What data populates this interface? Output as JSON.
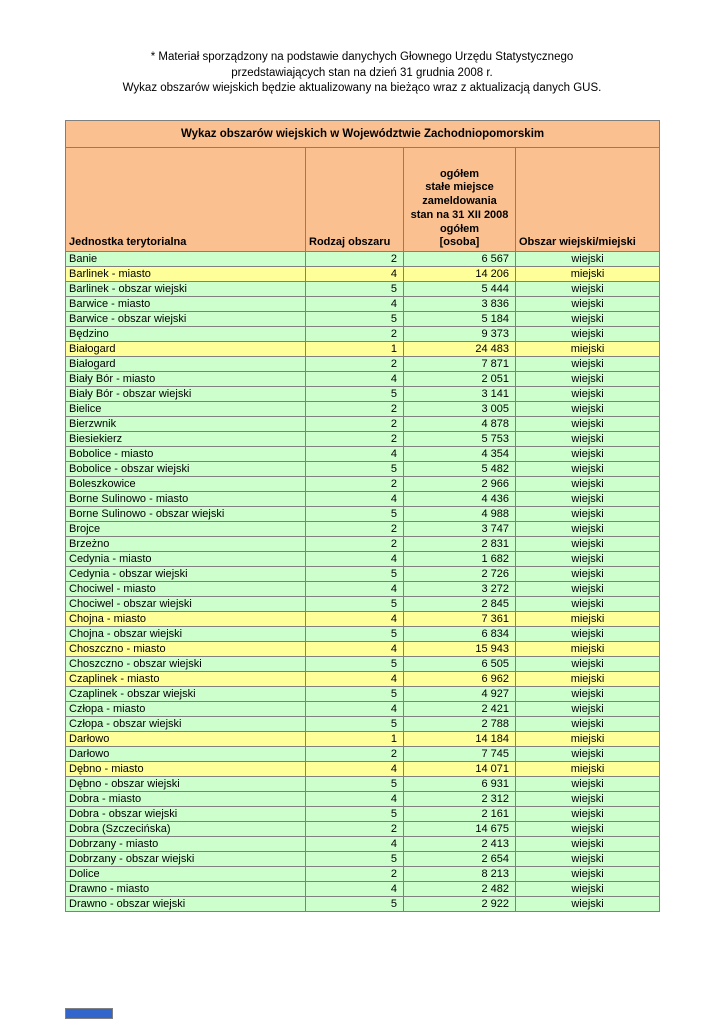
{
  "colors": {
    "orange_header": "#FAC090",
    "green_row": "#CCFFCC",
    "yellow_row": "#FFFF99",
    "blue_strip": "#3366CC"
  },
  "note": {
    "lines": [
      "* Materiał sporządzony na podstawie danychych Głownego Urzędu Statystycznego",
      "przedstawiających stan na dzień 31 grudnia 2008 r.",
      "Wykaz obszarów wiejskich będzie aktualizowany na bieżąco wraz z aktualizacją danych GUS."
    ]
  },
  "table": {
    "title": "Wykaz obszarów wiejskich w Województwie Zachodniopomorskim",
    "columns": {
      "territorial_unit": "Jednostka terytorialna",
      "area_type": "Rodzaj obszaru",
      "population": "ogółem\nstałe miejsce\nzameldowania\nstan na 31 XII 2008\nogółem\n[osoba]",
      "rural_urban": "Obszar wiejski/miejski"
    },
    "rows": [
      {
        "name": "Banie",
        "rodzaj": "2",
        "population": "6 567",
        "type": "wiejski"
      },
      {
        "name": "Barlinek - miasto",
        "rodzaj": "4",
        "population": "14 206",
        "type": "miejski"
      },
      {
        "name": "Barlinek - obszar wiejski",
        "rodzaj": "5",
        "population": "5 444",
        "type": "wiejski"
      },
      {
        "name": "Barwice - miasto",
        "rodzaj": "4",
        "population": "3 836",
        "type": "wiejski"
      },
      {
        "name": "Barwice - obszar wiejski",
        "rodzaj": "5",
        "population": "5 184",
        "type": "wiejski"
      },
      {
        "name": "Będzino",
        "rodzaj": "2",
        "population": "9 373",
        "type": "wiejski"
      },
      {
        "name": "Białogard",
        "rodzaj": "1",
        "population": "24 483",
        "type": "miejski"
      },
      {
        "name": "Białogard",
        "rodzaj": "2",
        "population": "7 871",
        "type": "wiejski"
      },
      {
        "name": "Biały Bór - miasto",
        "rodzaj": "4",
        "population": "2 051",
        "type": "wiejski"
      },
      {
        "name": "Biały Bór - obszar wiejski",
        "rodzaj": "5",
        "population": "3 141",
        "type": "wiejski"
      },
      {
        "name": "Bielice",
        "rodzaj": "2",
        "population": "3 005",
        "type": "wiejski"
      },
      {
        "name": "Bierzwnik",
        "rodzaj": "2",
        "population": "4 878",
        "type": "wiejski"
      },
      {
        "name": "Biesiekierz",
        "rodzaj": "2",
        "population": "5 753",
        "type": "wiejski"
      },
      {
        "name": "Bobolice - miasto",
        "rodzaj": "4",
        "population": "4 354",
        "type": "wiejski"
      },
      {
        "name": "Bobolice - obszar wiejski",
        "rodzaj": "5",
        "population": "5 482",
        "type": "wiejski"
      },
      {
        "name": "Boleszkowice",
        "rodzaj": "2",
        "population": "2 966",
        "type": "wiejski"
      },
      {
        "name": "Borne Sulinowo - miasto",
        "rodzaj": "4",
        "population": "4 436",
        "type": "wiejski"
      },
      {
        "name": "Borne Sulinowo - obszar wiejski",
        "rodzaj": "5",
        "population": "4 988",
        "type": "wiejski"
      },
      {
        "name": "Brojce",
        "rodzaj": "2",
        "population": "3 747",
        "type": "wiejski"
      },
      {
        "name": "Brzeżno",
        "rodzaj": "2",
        "population": "2 831",
        "type": "wiejski"
      },
      {
        "name": "Cedynia - miasto",
        "rodzaj": "4",
        "population": "1 682",
        "type": "wiejski"
      },
      {
        "name": "Cedynia - obszar wiejski",
        "rodzaj": "5",
        "population": "2 726",
        "type": "wiejski"
      },
      {
        "name": "Chociwel - miasto",
        "rodzaj": "4",
        "population": "3 272",
        "type": "wiejski"
      },
      {
        "name": "Chociwel - obszar wiejski",
        "rodzaj": "5",
        "population": "2 845",
        "type": "wiejski"
      },
      {
        "name": "Chojna - miasto",
        "rodzaj": "4",
        "population": "7 361",
        "type": "miejski"
      },
      {
        "name": "Chojna - obszar wiejski",
        "rodzaj": "5",
        "population": "6 834",
        "type": "wiejski"
      },
      {
        "name": "Choszczno - miasto",
        "rodzaj": "4",
        "population": "15 943",
        "type": "miejski"
      },
      {
        "name": "Choszczno - obszar wiejski",
        "rodzaj": "5",
        "population": "6 505",
        "type": "wiejski"
      },
      {
        "name": "Czaplinek - miasto",
        "rodzaj": "4",
        "population": "6 962",
        "type": "miejski"
      },
      {
        "name": "Czaplinek - obszar wiejski",
        "rodzaj": "5",
        "population": "4 927",
        "type": "wiejski"
      },
      {
        "name": "Człopa - miasto",
        "rodzaj": "4",
        "population": "2 421",
        "type": "wiejski"
      },
      {
        "name": "Człopa - obszar wiejski",
        "rodzaj": "5",
        "population": "2 788",
        "type": "wiejski"
      },
      {
        "name": "Darłowo",
        "rodzaj": "1",
        "population": "14 184",
        "type": "miejski"
      },
      {
        "name": "Darłowo",
        "rodzaj": "2",
        "population": "7 745",
        "type": "wiejski"
      },
      {
        "name": "Dębno - miasto",
        "rodzaj": "4",
        "population": "14 071",
        "type": "miejski"
      },
      {
        "name": "Dębno - obszar wiejski",
        "rodzaj": "5",
        "population": "6 931",
        "type": "wiejski"
      },
      {
        "name": "Dobra - miasto",
        "rodzaj": "4",
        "population": "2 312",
        "type": "wiejski"
      },
      {
        "name": "Dobra - obszar wiejski",
        "rodzaj": "5",
        "population": "2 161",
        "type": "wiejski"
      },
      {
        "name": "Dobra (Szczecińska)",
        "rodzaj": "2",
        "population": "14 675",
        "type": "wiejski"
      },
      {
        "name": "Dobrzany - miasto",
        "rodzaj": "4",
        "population": "2 413",
        "type": "wiejski"
      },
      {
        "name": "Dobrzany - obszar wiejski",
        "rodzaj": "5",
        "population": "2 654",
        "type": "wiejski"
      },
      {
        "name": "Dolice",
        "rodzaj": "2",
        "population": "8 213",
        "type": "wiejski"
      },
      {
        "name": "Drawno - miasto",
        "rodzaj": "4",
        "population": "2 482",
        "type": "wiejski"
      },
      {
        "name": "Drawno - obszar wiejski",
        "rodzaj": "5",
        "population": "2 922",
        "type": "wiejski"
      }
    ]
  }
}
